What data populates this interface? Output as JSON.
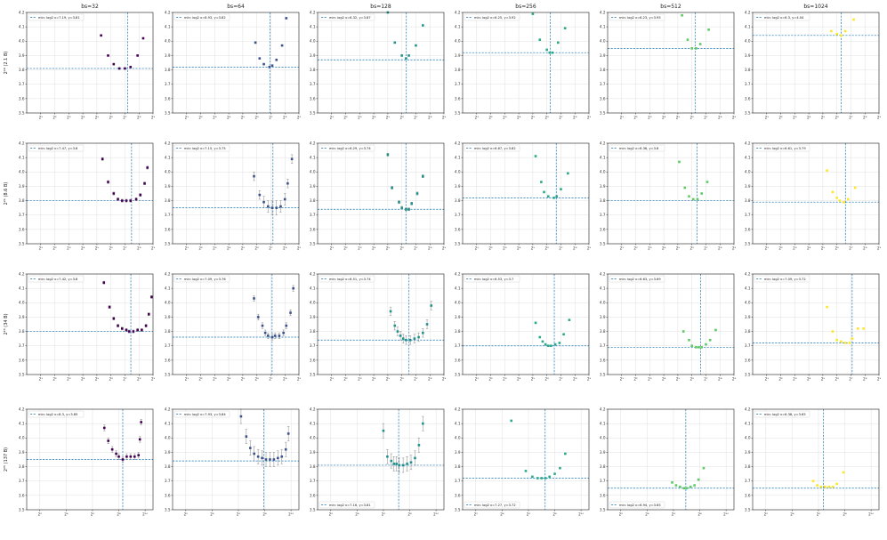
{
  "chart_data": {
    "type": "scatter",
    "layout": {
      "rows": 4,
      "cols": 6
    },
    "col_titles": [
      "bs=32",
      "bs=64",
      "bs=128",
      "bs=256",
      "bs=512",
      "bs=1024"
    ],
    "row_labels": [
      "2¹⁹ (2.1 B)",
      "2²¹ (8.6 B)",
      "2²³ (34 B)",
      "2²⁵ (137 B)"
    ],
    "ylim": [
      3.5,
      4.2
    ],
    "yticks": [
      "3.5",
      "3.6",
      "3.7",
      "3.8",
      "3.9",
      "4.0",
      "4.1",
      "4.2"
    ],
    "x_axis": "log2",
    "xlim_per_row": [
      [
        0,
        9
      ],
      [
        0,
        9
      ],
      [
        0,
        9
      ],
      [
        1,
        10.6
      ]
    ],
    "xticks_per_row": [
      [
        "2¹",
        "2²",
        "2³",
        "2⁴",
        "2⁵",
        "2⁶",
        "2⁷",
        "2⁸",
        "2⁹"
      ],
      [
        "2¹",
        "2²",
        "2³",
        "2⁴",
        "2⁵",
        "2⁶",
        "2⁷",
        "2⁸",
        "2⁹"
      ],
      [
        "2¹",
        "2²",
        "2³",
        "2⁴",
        "2⁵",
        "2⁶",
        "2⁷",
        "2⁸",
        "2⁹"
      ],
      [
        "2²",
        "2⁴",
        "2⁶",
        "2⁸",
        "2¹⁰"
      ]
    ],
    "grid": true,
    "legend_placement_per_row": [
      "upper left",
      "upper left",
      "upper left",
      "upper left / lower left"
    ],
    "colors": [
      "#440154",
      "#3b528b",
      "#21918c",
      "#27a98a",
      "#5ec962",
      "#fde725"
    ],
    "min_line_color": "#1f77b4",
    "panels": [
      [
        {
          "legend": "min: log2 x=7.19, y=3.81",
          "min_x": 7.19,
          "min_y": 3.81,
          "x": [
            5.3,
            5.8,
            6.2,
            6.6,
            7.0,
            7.4,
            7.9,
            8.3
          ],
          "y": [
            4.04,
            3.9,
            3.84,
            3.81,
            3.81,
            3.82,
            3.9,
            4.02
          ],
          "err": [
            0,
            0,
            0,
            0,
            0,
            0,
            0,
            0
          ]
        },
        {
          "legend": "min: log2 x=6.93, y=3.82",
          "min_x": 6.93,
          "min_y": 3.82,
          "x": [
            5.9,
            6.2,
            6.5,
            6.9,
            7.1,
            7.4,
            7.8,
            8.1
          ],
          "y": [
            3.99,
            3.88,
            3.84,
            3.82,
            3.83,
            3.87,
            3.97,
            4.16
          ],
          "err": [
            0,
            0,
            0,
            0,
            0,
            0,
            0,
            0
          ]
        },
        {
          "legend": "min: log2 x=6.32, y=3.87",
          "min_x": 6.32,
          "min_y": 3.87,
          "x": [
            5.0,
            5.5,
            6.0,
            6.3,
            6.5,
            7.0,
            7.5
          ],
          "y": [
            4.2,
            3.99,
            3.9,
            3.88,
            3.9,
            3.97,
            4.11
          ],
          "err": [
            0,
            0,
            0,
            0,
            0,
            0,
            0
          ]
        },
        {
          "legend": "min: log2 x=6.25, y=3.92",
          "min_x": 6.25,
          "min_y": 3.92,
          "x": [
            5.0,
            5.5,
            6.0,
            6.2,
            6.4,
            6.8,
            7.3
          ],
          "y": [
            4.19,
            4.01,
            3.94,
            3.92,
            3.92,
            3.99,
            4.09
          ],
          "err": [
            0,
            0,
            0,
            0,
            0,
            0,
            0
          ]
        },
        {
          "legend": "min: log2 x=6.23, y=3.95",
          "min_x": 6.23,
          "min_y": 3.95,
          "x": [
            5.3,
            5.7,
            6.0,
            6.3,
            6.6,
            7.2
          ],
          "y": [
            4.18,
            4.01,
            3.95,
            3.95,
            3.98,
            4.08
          ],
          "err": [
            0,
            0,
            0,
            0,
            0,
            0
          ]
        },
        {
          "legend": "min: log2 x=6.3, y=4.04",
          "min_x": 6.3,
          "min_y": 4.04,
          "x": [
            5.6,
            6.0,
            6.3,
            6.6,
            7.2
          ],
          "y": [
            4.07,
            4.05,
            4.04,
            4.07,
            4.15
          ],
          "err": [
            0,
            0,
            0,
            0,
            0
          ]
        }
      ],
      [
        {
          "legend": "min: log2 x=7.47, y=3.8",
          "min_x": 7.47,
          "min_y": 3.8,
          "x": [
            5.4,
            5.8,
            6.2,
            6.5,
            6.8,
            7.1,
            7.4,
            7.8,
            8.1,
            8.4,
            8.6
          ],
          "y": [
            4.09,
            3.93,
            3.85,
            3.81,
            3.8,
            3.8,
            3.8,
            3.81,
            3.84,
            3.92,
            4.03
          ],
          "err": [
            0.01,
            0.01,
            0.01,
            0.01,
            0.01,
            0.01,
            0.01,
            0.01,
            0.01,
            0.01,
            0.01
          ]
        },
        {
          "legend": "min: log2 x=7.15, y=3.75",
          "min_x": 7.15,
          "min_y": 3.75,
          "x": [
            5.8,
            6.2,
            6.5,
            6.8,
            7.1,
            7.4,
            7.7,
            8.0,
            8.2,
            8.5
          ],
          "y": [
            3.97,
            3.84,
            3.79,
            3.76,
            3.75,
            3.75,
            3.76,
            3.81,
            3.92,
            4.09
          ],
          "err": [
            0.03,
            0.03,
            0.04,
            0.04,
            0.05,
            0.05,
            0.04,
            0.04,
            0.03,
            0.03
          ]
        },
        {
          "legend": "min: log2 x=6.29, y=3.74",
          "min_x": 6.29,
          "min_y": 3.74,
          "x": [
            5.0,
            5.3,
            5.8,
            6.0,
            6.3,
            6.5,
            6.7,
            7.1,
            7.5
          ],
          "y": [
            4.12,
            3.89,
            3.79,
            3.75,
            3.74,
            3.74,
            3.78,
            3.85,
            3.97
          ],
          "err": [
            0.01,
            0.01,
            0.01,
            0.01,
            0.01,
            0.01,
            0.01,
            0.01,
            0.01
          ]
        },
        {
          "legend": "min: log2 x=6.67, y=3.82",
          "min_x": 6.67,
          "min_y": 3.82,
          "x": [
            5.2,
            5.6,
            5.8,
            6.1,
            6.5,
            6.7,
            7.0,
            7.5
          ],
          "y": [
            4.11,
            3.93,
            3.86,
            3.83,
            3.82,
            3.83,
            3.88,
            3.99
          ],
          "err": [
            0,
            0,
            0,
            0,
            0,
            0,
            0,
            0
          ]
        },
        {
          "legend": "min: log2 x=6.36, y=3.8",
          "min_x": 6.36,
          "min_y": 3.8,
          "x": [
            5.1,
            5.5,
            5.8,
            6.1,
            6.4,
            6.7,
            7.1
          ],
          "y": [
            4.07,
            3.89,
            3.83,
            3.81,
            3.81,
            3.85,
            3.93
          ],
          "err": [
            0,
            0,
            0,
            0,
            0,
            0,
            0
          ]
        },
        {
          "legend": "min: log2 x=6.61, y=3.79",
          "min_x": 6.61,
          "min_y": 3.79,
          "x": [
            5.3,
            5.7,
            6.0,
            6.2,
            6.5,
            6.8,
            7.3
          ],
          "y": [
            4.01,
            3.86,
            3.82,
            3.8,
            3.79,
            3.81,
            3.89
          ],
          "err": [
            0,
            0,
            0,
            0,
            0,
            0,
            0
          ]
        }
      ],
      [
        {
          "legend": "min: log2 x=7.42, y=3.8",
          "min_x": 7.42,
          "min_y": 3.8,
          "x": [
            5.5,
            5.9,
            6.2,
            6.5,
            6.8,
            7.1,
            7.3,
            7.6,
            7.9,
            8.2,
            8.5,
            8.7,
            8.9
          ],
          "y": [
            4.14,
            3.97,
            3.89,
            3.84,
            3.82,
            3.81,
            3.8,
            3.8,
            3.81,
            3.81,
            3.84,
            3.92,
            4.04
          ],
          "err": [
            0.01,
            0.01,
            0.01,
            0.01,
            0.01,
            0.01,
            0.01,
            0.01,
            0.01,
            0.01,
            0.01,
            0.01,
            0.01
          ]
        },
        {
          "legend": "min: log2 x=7.09, y=3.76",
          "min_x": 7.09,
          "min_y": 3.76,
          "x": [
            5.8,
            6.1,
            6.4,
            6.6,
            6.8,
            7.1,
            7.3,
            7.6,
            7.9,
            8.1,
            8.4,
            8.6
          ],
          "y": [
            4.03,
            3.9,
            3.84,
            3.79,
            3.77,
            3.76,
            3.77,
            3.77,
            3.79,
            3.84,
            3.93,
            4.1
          ],
          "err": [
            0.02,
            0.02,
            0.02,
            0.02,
            0.02,
            0.02,
            0.02,
            0.02,
            0.02,
            0.02,
            0.02,
            0.02
          ]
        },
        {
          "legend": "min: log2 x=6.51, y=3.74",
          "min_x": 6.51,
          "min_y": 3.74,
          "x": [
            5.2,
            5.5,
            5.7,
            5.9,
            6.1,
            6.3,
            6.6,
            6.9,
            7.2,
            7.5,
            7.8,
            8.1
          ],
          "y": [
            3.94,
            3.84,
            3.8,
            3.77,
            3.75,
            3.74,
            3.74,
            3.75,
            3.76,
            3.79,
            3.85,
            3.98
          ],
          "err": [
            0.03,
            0.03,
            0.03,
            0.03,
            0.03,
            0.03,
            0.03,
            0.03,
            0.03,
            0.03,
            0.03,
            0.03
          ]
        },
        {
          "legend": "min: log2 x=6.53, y=3.7",
          "min_x": 6.53,
          "min_y": 3.7,
          "x": [
            5.2,
            5.5,
            5.7,
            5.9,
            6.1,
            6.3,
            6.6,
            6.9,
            7.2,
            7.6
          ],
          "y": [
            3.86,
            3.76,
            3.73,
            3.71,
            3.7,
            3.7,
            3.71,
            3.72,
            3.78,
            3.88
          ],
          "err": [
            0,
            0,
            0,
            0,
            0,
            0,
            0,
            0,
            0,
            0
          ]
        },
        {
          "legend": "min: log2 x=6.63, y=3.69",
          "min_x": 6.63,
          "min_y": 3.69,
          "x": [
            5.4,
            5.8,
            6.0,
            6.3,
            6.5,
            6.7,
            7.0,
            7.3,
            7.7
          ],
          "y": [
            3.8,
            3.74,
            3.7,
            3.69,
            3.69,
            3.69,
            3.71,
            3.74,
            3.81
          ],
          "err": [
            0,
            0,
            0,
            0,
            0,
            0,
            0,
            0,
            0
          ]
        },
        {
          "legend": "min: log2 x=7.09, y=3.72",
          "min_x": 7.09,
          "min_y": 3.72,
          "x": [
            5.3,
            5.7,
            6.0,
            6.3,
            6.6,
            6.9,
            7.1,
            7.5,
            7.9
          ],
          "y": [
            3.97,
            3.8,
            3.74,
            3.73,
            3.72,
            3.72,
            3.75,
            3.82,
            3.82
          ],
          "err": [
            0,
            0,
            0,
            0,
            0,
            0,
            0,
            0,
            0
          ]
        }
      ],
      [
        {
          "legend": "min: log2 x=8.3, y=3.85",
          "min_x": 8.3,
          "min_y": 3.85,
          "x": [
            6.9,
            7.2,
            7.5,
            7.8,
            8.0,
            8.3,
            8.6,
            8.9,
            9.2,
            9.5,
            9.6,
            9.7
          ],
          "y": [
            4.07,
            3.98,
            3.92,
            3.89,
            3.87,
            3.85,
            3.87,
            3.87,
            3.87,
            3.88,
            3.99,
            4.11
          ],
          "err": [
            0.02,
            0.02,
            0.02,
            0.02,
            0.02,
            0.02,
            0.02,
            0.02,
            0.02,
            0.02,
            0.02,
            0.02
          ]
        },
        {
          "legend": "min: log2 x=7.93, y=3.84",
          "min_x": 7.93,
          "min_y": 3.84,
          "x": [
            6.2,
            6.6,
            6.9,
            7.2,
            7.5,
            7.8,
            8.1,
            8.4,
            8.7,
            9.0,
            9.3,
            9.6,
            9.8
          ],
          "y": [
            4.15,
            4.01,
            3.93,
            3.89,
            3.87,
            3.86,
            3.85,
            3.85,
            3.85,
            3.86,
            3.87,
            3.92,
            4.03
          ],
          "err": [
            0.05,
            0.05,
            0.05,
            0.05,
            0.05,
            0.05,
            0.05,
            0.05,
            0.05,
            0.05,
            0.05,
            0.05,
            0.05
          ]
        },
        {
          "legend": "min: log2 x=7.16, y=3.81",
          "min_x": 7.16,
          "min_y": 3.81,
          "x": [
            6.0,
            6.3,
            6.6,
            6.8,
            7.0,
            7.2,
            7.5,
            7.8,
            8.1,
            8.4,
            8.7,
            9.0
          ],
          "y": [
            4.05,
            3.87,
            3.84,
            3.82,
            3.82,
            3.81,
            3.81,
            3.82,
            3.83,
            3.86,
            3.95,
            4.1
          ],
          "err": [
            0.05,
            0.05,
            0.05,
            0.05,
            0.05,
            0.05,
            0.05,
            0.05,
            0.05,
            0.05,
            0.05,
            0.05
          ]
        },
        {
          "legend": "min: log2 x=7.27, y=3.72",
          "min_x": 7.27,
          "min_y": 3.72,
          "x": [
            4.7,
            5.8,
            6.3,
            6.7,
            7.0,
            7.3,
            7.6,
            8.0,
            8.4,
            8.8
          ],
          "y": [
            4.12,
            3.77,
            3.73,
            3.72,
            3.72,
            3.72,
            3.73,
            3.75,
            3.79,
            3.89
          ],
          "err": [
            0,
            0,
            0,
            0,
            0,
            0,
            0,
            0,
            0,
            0
          ]
        },
        {
          "legend": "min: log2 x=6.94, y=3.65",
          "min_x": 6.94,
          "min_y": 3.65,
          "x": [
            5.9,
            6.2,
            6.5,
            6.8,
            7.0,
            7.3,
            7.6,
            7.9,
            8.3
          ],
          "y": [
            3.69,
            3.67,
            3.66,
            3.65,
            3.65,
            3.66,
            3.67,
            3.71,
            3.79
          ],
          "err": [
            0,
            0,
            0,
            0,
            0,
            0,
            0,
            0,
            0
          ]
        },
        {
          "legend": "min: log2 x=6.38, y=3.65",
          "min_x": 6.38,
          "min_y": 3.65,
          "x": [
            5.6,
            5.9,
            6.2,
            6.5,
            6.8,
            7.1,
            7.4,
            7.9
          ],
          "y": [
            3.7,
            3.67,
            3.66,
            3.66,
            3.66,
            3.66,
            3.68,
            3.76
          ],
          "err": [
            0,
            0,
            0,
            0,
            0,
            0,
            0,
            0
          ]
        }
      ]
    ]
  }
}
